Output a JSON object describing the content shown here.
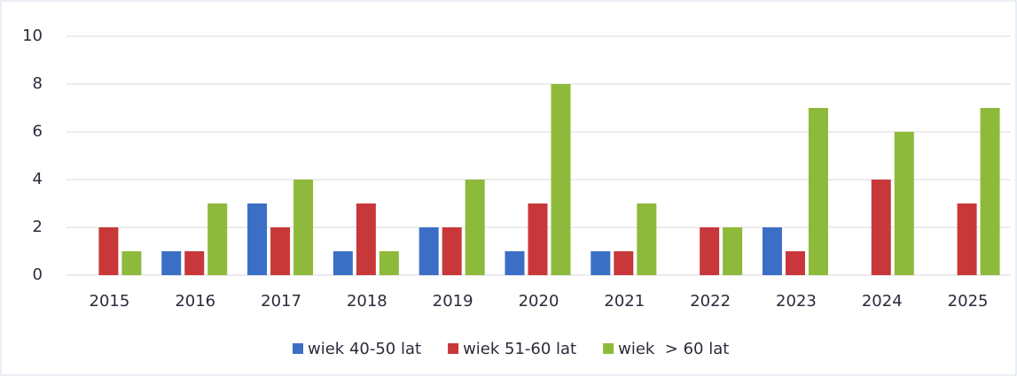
{
  "chart_data": {
    "type": "bar",
    "categories": [
      "2015",
      "2016",
      "2017",
      "2018",
      "2019",
      "2020",
      "2021",
      "2022",
      "2023",
      "2024",
      "2025"
    ],
    "series": [
      {
        "name": "wiek 40-50 lat",
        "color": "#3b6fc6",
        "values": [
          0,
          1,
          3,
          1,
          2,
          1,
          1,
          0,
          2,
          0,
          0
        ]
      },
      {
        "name": "wiek 51-60 lat",
        "color": "#c8383a",
        "values": [
          2,
          1,
          2,
          3,
          2,
          3,
          1,
          2,
          1,
          4,
          3
        ]
      },
      {
        "name": "wiek  > 60 lat",
        "color": "#8dba3b",
        "values": [
          1,
          3,
          4,
          1,
          4,
          8,
          3,
          2,
          7,
          6,
          7
        ]
      }
    ],
    "ylim": [
      0,
      10
    ],
    "yticks": [
      0,
      2,
      4,
      6,
      8,
      10
    ],
    "grid": true,
    "legend": "bottom"
  }
}
